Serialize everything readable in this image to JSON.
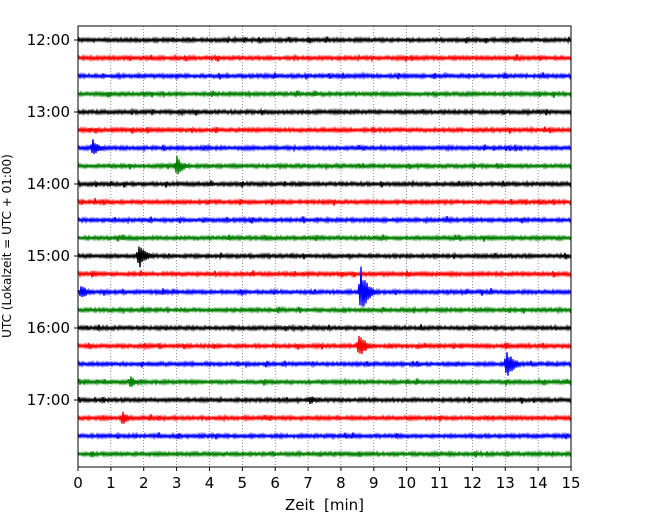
{
  "chart_data": {
    "type": "line",
    "xlabel": "Zeit  [min]",
    "ylabel": "UTC (Lokalzeit = UTC + 01:00)",
    "xlim": [
      0,
      15
    ],
    "x_ticks": [
      "0",
      "1",
      "2",
      "3",
      "4",
      "5",
      "6",
      "7",
      "8",
      "9",
      "10",
      "11",
      "12",
      "13",
      "14",
      "15"
    ],
    "y_tick_labels": [
      "12:00",
      "13:00",
      "14:00",
      "15:00",
      "16:00",
      "17:00"
    ],
    "traces_per_hour": 4,
    "trace_start_times": [
      "12:00",
      "12:15",
      "12:30",
      "12:45",
      "13:00",
      "13:15",
      "13:30",
      "13:45",
      "14:00",
      "14:15",
      "14:30",
      "14:45",
      "15:00",
      "15:15",
      "15:30",
      "15:45",
      "16:00",
      "16:15",
      "16:30",
      "16:45",
      "17:00",
      "17:15",
      "17:30",
      "17:45"
    ],
    "trace_colors": [
      "#000000",
      "#ff0000",
      "#0000ff",
      "#008000"
    ],
    "grid": "vertical-dotted",
    "events": [
      {
        "trace": "13:30",
        "minute": 0.45,
        "amplitude": 0.55
      },
      {
        "trace": "13:45",
        "minute": 3.0,
        "amplitude": 0.6
      },
      {
        "trace": "15:00",
        "minute": 1.85,
        "amplitude": 0.85
      },
      {
        "trace": "15:30",
        "minute": 0.1,
        "amplitude": 0.45
      },
      {
        "trace": "15:30",
        "minute": 8.6,
        "amplitude": 1.5
      },
      {
        "trace": "16:15",
        "minute": 8.55,
        "amplitude": 0.75
      },
      {
        "trace": "16:30",
        "minute": 13.05,
        "amplitude": 0.85
      },
      {
        "trace": "16:45",
        "minute": 1.6,
        "amplitude": 0.35
      },
      {
        "trace": "17:00",
        "minute": 7.05,
        "amplitude": 0.3
      },
      {
        "trace": "17:15",
        "minute": 1.35,
        "amplitude": 0.4
      }
    ]
  }
}
